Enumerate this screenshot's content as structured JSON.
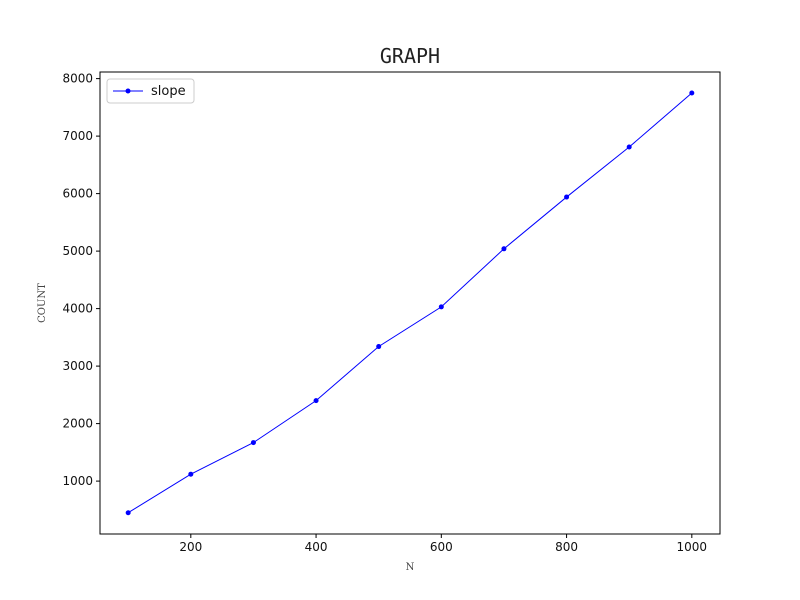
{
  "chart_data": {
    "type": "line",
    "title": "GRAPH",
    "xlabel": "N",
    "ylabel": "COUNT",
    "x": [
      100,
      200,
      300,
      400,
      500,
      600,
      700,
      800,
      900,
      1000
    ],
    "series": [
      {
        "name": "slope",
        "color": "#0000ff",
        "marker": "circle",
        "values": [
          450,
          1120,
          1670,
          2400,
          3340,
          4030,
          5040,
          5940,
          6810,
          7750
        ]
      }
    ],
    "xlim": [
      55,
      1045
    ],
    "ylim": [
      80,
      8115
    ],
    "xticks": [
      200,
      400,
      600,
      800,
      1000
    ],
    "yticks": [
      1000,
      2000,
      3000,
      4000,
      5000,
      6000,
      7000,
      8000
    ],
    "grid": false,
    "legend_position": "top-left"
  }
}
